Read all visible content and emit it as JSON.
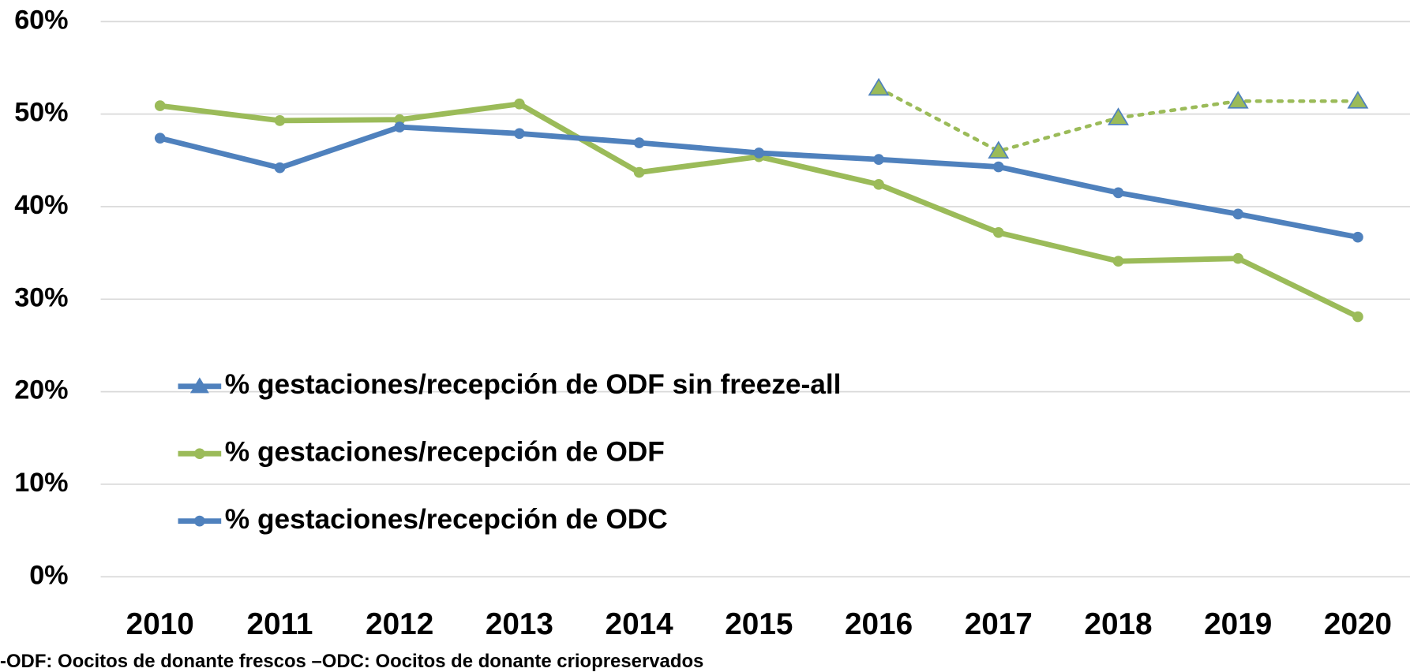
{
  "chart_data": {
    "type": "line",
    "categories": [
      "2010",
      "2011",
      "2012",
      "2013",
      "2014",
      "2015",
      "2016",
      "2017",
      "2018",
      "2019",
      "2020"
    ],
    "series": [
      {
        "name": "% gestaciones/recepción de ODF sin freeze-all",
        "color": "#9bbb59",
        "edge_color": "#4f81bd",
        "marker": "triangle",
        "dash": "dotted",
        "values": [
          null,
          null,
          null,
          null,
          null,
          null,
          52.8,
          46.0,
          49.6,
          51.4,
          51.4
        ]
      },
      {
        "name": "% gestaciones/recepción de ODF",
        "color": "#9bbb59",
        "marker": "circle",
        "values": [
          50.9,
          49.3,
          49.4,
          51.1,
          43.7,
          45.4,
          42.4,
          37.2,
          34.1,
          34.4,
          28.1
        ]
      },
      {
        "name": "% gestaciones/recepción de ODC",
        "color": "#4f81bd",
        "marker": "circle",
        "values": [
          47.4,
          44.2,
          48.6,
          47.9,
          46.9,
          45.8,
          45.1,
          44.3,
          41.5,
          39.2,
          36.7
        ]
      }
    ],
    "ylim": [
      0,
      60
    ],
    "yticks": [
      {
        "value": 0,
        "label": "0%"
      },
      {
        "value": 10,
        "label": "10%"
      },
      {
        "value": 20,
        "label": "20%"
      },
      {
        "value": 30,
        "label": "30%"
      },
      {
        "value": 40,
        "label": "40%"
      },
      {
        "value": 50,
        "label": "50%"
      },
      {
        "value": 60,
        "label": "60%"
      }
    ],
    "grid": true,
    "legend": "left",
    "footnote": "-ODF: Oocitos de donante frescos –ODC: Oocitos de donante criopreservados"
  }
}
